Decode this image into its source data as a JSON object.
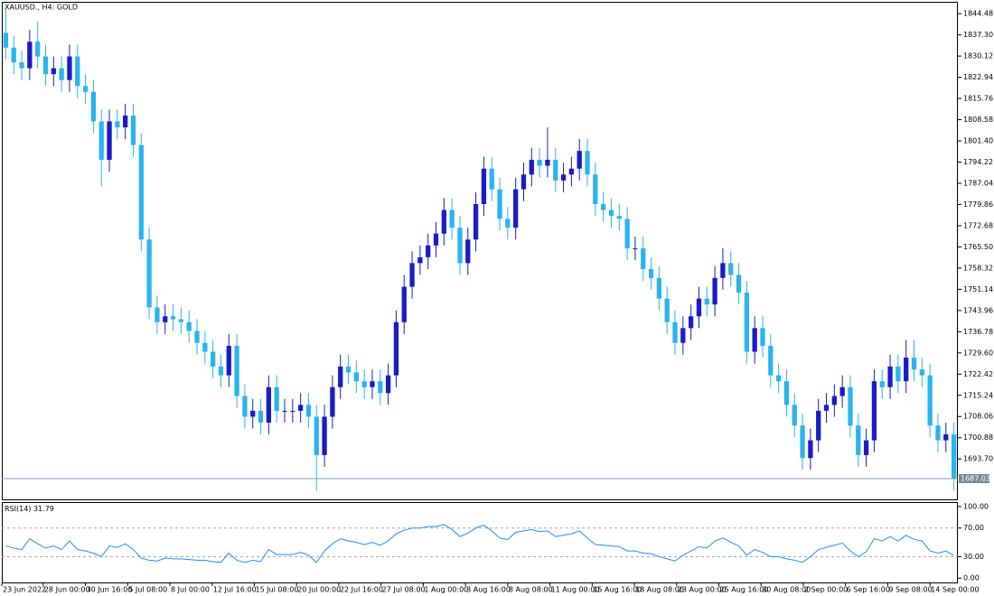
{
  "chart_data": [
    {
      "type": "candlestick",
      "title": "XAUUSD., H4:  GOLD",
      "up_color": "#1b1bc8",
      "down_color": "#2ab4ee",
      "open": [
        1838,
        1833,
        1828,
        1826,
        1835,
        1830,
        1824,
        1826,
        1822,
        1830,
        1820,
        1818,
        1808,
        1795,
        1808,
        1806,
        1810,
        1800,
        1768,
        1745,
        1740,
        1742,
        1741,
        1740,
        1737,
        1733,
        1730,
        1725,
        1722,
        1732,
        1715,
        1708,
        1710,
        1706,
        1718,
        1710,
        1710,
        1710,
        1712,
        1708,
        1695,
        1708,
        1718,
        1725,
        1723,
        1720,
        1718,
        1720,
        1716,
        1722,
        1740,
        1752,
        1760,
        1762,
        1766,
        1770,
        1778,
        1772,
        1760,
        1768,
        1780,
        1792,
        1785,
        1775,
        1772,
        1785,
        1790,
        1795,
        1793,
        1795,
        1788,
        1790,
        1792,
        1798,
        1790,
        1780,
        1778,
        1776,
        1775,
        1765,
        1765,
        1758,
        1755,
        1748,
        1740,
        1733,
        1738,
        1742,
        1748,
        1746,
        1755,
        1760,
        1756,
        1750,
        1730,
        1738,
        1732,
        1722,
        1720,
        1712,
        1705,
        1694,
        1700,
        1710,
        1712,
        1715,
        1718,
        1705,
        1695,
        1700,
        1720,
        1718,
        1725,
        1720,
        1728,
        1724,
        1722,
        1705,
        1700,
        1702
      ],
      "high": [
        1846,
        1837,
        1832,
        1839,
        1842,
        1834,
        1830,
        1830,
        1834,
        1834,
        1824,
        1822,
        1812,
        1812,
        1812,
        1814,
        1814,
        1804,
        1772,
        1749,
        1746,
        1746,
        1745,
        1744,
        1741,
        1737,
        1734,
        1729,
        1736,
        1736,
        1719,
        1714,
        1714,
        1722,
        1722,
        1714,
        1714,
        1716,
        1716,
        1712,
        1712,
        1722,
        1729,
        1729,
        1727,
        1724,
        1724,
        1724,
        1726,
        1744,
        1756,
        1764,
        1766,
        1770,
        1774,
        1782,
        1782,
        1776,
        1772,
        1784,
        1796,
        1796,
        1789,
        1779,
        1789,
        1794,
        1799,
        1799,
        1806,
        1799,
        1794,
        1796,
        1802,
        1802,
        1794,
        1784,
        1782,
        1780,
        1779,
        1769,
        1769,
        1762,
        1759,
        1752,
        1744,
        1742,
        1746,
        1752,
        1752,
        1759,
        1765,
        1764,
        1760,
        1754,
        1742,
        1742,
        1736,
        1726,
        1724,
        1716,
        1709,
        1704,
        1714,
        1716,
        1719,
        1722,
        1722,
        1709,
        1704,
        1724,
        1724,
        1729,
        1729,
        1734,
        1734,
        1728,
        1726,
        1709,
        1706,
        1706
      ],
      "low": [
        1829,
        1824,
        1822,
        1822,
        1826,
        1820,
        1820,
        1818,
        1818,
        1816,
        1814,
        1804,
        1786,
        1791,
        1802,
        1802,
        1796,
        1764,
        1741,
        1736,
        1736,
        1737,
        1736,
        1733,
        1729,
        1726,
        1721,
        1718,
        1718,
        1711,
        1704,
        1704,
        1702,
        1702,
        1706,
        1706,
        1706,
        1706,
        1704,
        1683,
        1691,
        1704,
        1714,
        1719,
        1716,
        1714,
        1714,
        1712,
        1712,
        1718,
        1736,
        1748,
        1756,
        1758,
        1762,
        1766,
        1768,
        1756,
        1756,
        1764,
        1776,
        1781,
        1771,
        1768,
        1768,
        1781,
        1786,
        1789,
        1789,
        1784,
        1784,
        1786,
        1788,
        1786,
        1776,
        1774,
        1772,
        1771,
        1761,
        1761,
        1754,
        1751,
        1744,
        1736,
        1729,
        1729,
        1734,
        1738,
        1742,
        1742,
        1751,
        1752,
        1746,
        1726,
        1726,
        1728,
        1718,
        1716,
        1708,
        1701,
        1690,
        1690,
        1696,
        1706,
        1708,
        1711,
        1701,
        1691,
        1691,
        1696,
        1714,
        1714,
        1716,
        1716,
        1720,
        1718,
        1701,
        1696,
        1696,
        1683
      ],
      "close": [
        1833,
        1828,
        1826,
        1835,
        1830,
        1824,
        1826,
        1822,
        1830,
        1820,
        1818,
        1808,
        1795,
        1808,
        1806,
        1810,
        1800,
        1768,
        1745,
        1740,
        1742,
        1741,
        1740,
        1737,
        1733,
        1730,
        1725,
        1722,
        1732,
        1715,
        1708,
        1710,
        1706,
        1718,
        1710,
        1710,
        1710,
        1712,
        1708,
        1695,
        1708,
        1718,
        1725,
        1723,
        1720,
        1718,
        1720,
        1716,
        1722,
        1740,
        1752,
        1760,
        1762,
        1766,
        1770,
        1778,
        1772,
        1760,
        1768,
        1780,
        1792,
        1785,
        1775,
        1772,
        1785,
        1790,
        1795,
        1793,
        1795,
        1788,
        1790,
        1792,
        1798,
        1790,
        1780,
        1778,
        1776,
        1775,
        1765,
        1765,
        1758,
        1755,
        1748,
        1740,
        1733,
        1738,
        1742,
        1748,
        1746,
        1755,
        1760,
        1756,
        1750,
        1730,
        1738,
        1732,
        1722,
        1720,
        1712,
        1705,
        1694,
        1700,
        1710,
        1712,
        1715,
        1718,
        1705,
        1695,
        1700,
        1720,
        1718,
        1725,
        1720,
        1728,
        1724,
        1722,
        1705,
        1700,
        1702,
        1687.03
      ],
      "ylim": [
        1680,
        1848.5
      ],
      "yticks": [
        1844.48,
        {
          "value": 1837.3,
          "label": "1837.30"
        },
        1830.12,
        1822.94,
        1815.76,
        1808.58,
        {
          "value": 1801.4,
          "label": "1801.40"
        },
        1794.22,
        1787.04,
        1779.86,
        1772.68,
        {
          "value": 1765.5,
          "label": "1765.50"
        },
        1758.32,
        1751.14,
        1743.96,
        1736.78,
        {
          "value": 1729.6,
          "label": "1729.60"
        },
        1722.42,
        1715.24,
        1708.06,
        1700.88,
        {
          "value": 1693.7,
          "label": "1693.70"
        }
      ],
      "xlim": [
        0,
        120
      ],
      "xticks": [
        {
          "value": 0,
          "label": "23 Jun 2022"
        },
        {
          "value": 5.2,
          "label": "28 Jun 00:00"
        },
        {
          "value": 10.5,
          "label": "30 Jun 16:00"
        },
        {
          "value": 15.8,
          "label": "5 Jul 08:00"
        },
        {
          "value": 21.1,
          "label": "8 Jul 00:00"
        },
        {
          "value": 26.4,
          "label": "12 Jul 16:00"
        },
        {
          "value": 31.7,
          "label": "15 Jul 08:00"
        },
        {
          "value": 37.0,
          "label": "20 Jul 00:00"
        },
        {
          "value": 42.3,
          "label": "22 Jul 16:00"
        },
        {
          "value": 47.6,
          "label": "27 Jul 08:00"
        },
        {
          "value": 52.9,
          "label": "1 Aug 00:00"
        },
        {
          "value": 58.2,
          "label": "3 Aug 16:00"
        },
        {
          "value": 63.5,
          "label": "8 Aug 08:00"
        },
        {
          "value": 68.8,
          "label": "11 Aug 00:00"
        },
        {
          "value": 74.1,
          "label": "15 Aug 16:00"
        },
        {
          "value": 79.4,
          "label": "18 Aug 08:00"
        },
        {
          "value": 84.7,
          "label": "23 Aug 00:00"
        },
        {
          "value": 90.0,
          "label": "25 Aug 16:00"
        },
        {
          "value": 95.3,
          "label": "30 Aug 08:00"
        },
        {
          "value": 100.6,
          "label": "2 Sep 00:00"
        },
        {
          "value": 105.9,
          "label": "6 Sep 16:00"
        },
        {
          "value": 111.2,
          "label": "9 Sep 08:00"
        },
        {
          "value": 116.5,
          "label": "14 Sep 00:00"
        }
      ]
    },
    {
      "type": "line",
      "title": "RSI(14)",
      "color": "#1e90ff",
      "values": [
        45,
        42,
        40,
        55,
        48,
        42,
        45,
        40,
        52,
        40,
        38,
        35,
        30,
        45,
        43,
        48,
        40,
        28,
        25,
        24,
        28,
        27,
        27,
        26,
        25,
        25,
        23,
        22,
        35,
        25,
        22,
        25,
        23,
        40,
        33,
        33,
        33,
        36,
        32,
        22,
        38,
        48,
        55,
        52,
        50,
        47,
        50,
        46,
        52,
        62,
        67,
        70,
        70,
        72,
        72,
        75,
        68,
        58,
        63,
        70,
        74,
        66,
        56,
        54,
        64,
        66,
        68,
        65,
        66,
        58,
        60,
        62,
        66,
        56,
        47,
        46,
        45,
        44,
        38,
        38,
        35,
        34,
        30,
        27,
        24,
        32,
        38,
        44,
        42,
        52,
        56,
        50,
        45,
        32,
        40,
        36,
        30,
        30,
        27,
        25,
        22,
        30,
        40,
        43,
        46,
        49,
        38,
        30,
        37,
        55,
        52,
        58,
        52,
        60,
        54,
        52,
        38,
        35,
        38,
        31.79
      ],
      "ylim": [
        -6,
        105
      ],
      "yticks": [
        {
          "value": 100,
          "label": "100.00"
        },
        {
          "value": 70,
          "label": "70.00"
        },
        {
          "value": 30,
          "label": "30.00"
        },
        {
          "value": 0,
          "label": "0.00"
        }
      ],
      "levels": [
        70,
        30
      ]
    }
  ]
}
